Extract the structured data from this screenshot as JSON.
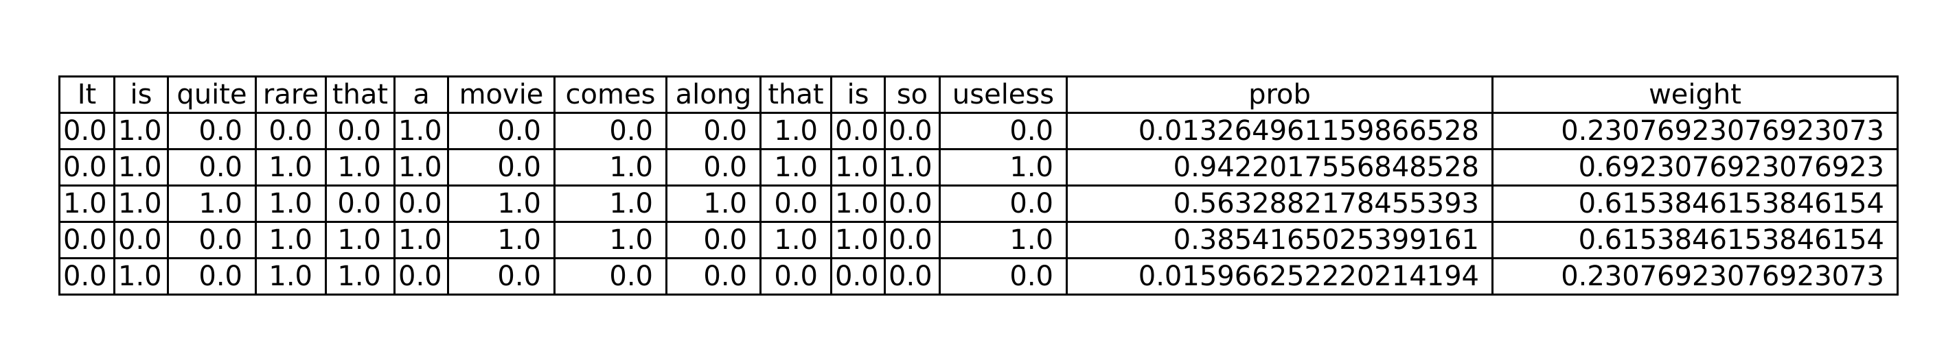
{
  "chart_data": {
    "type": "table",
    "columns": [
      "It",
      "is",
      "quite",
      "rare",
      "that",
      "a",
      "movie",
      "comes",
      "along",
      "that",
      "is",
      "so",
      "useless",
      "prob",
      "weight"
    ],
    "rows": [
      [
        "0.0",
        "1.0",
        "0.0",
        "0.0",
        "0.0",
        "1.0",
        "0.0",
        "0.0",
        "0.0",
        "1.0",
        "0.0",
        "0.0",
        "0.0",
        "0.013264961159866528",
        "0.23076923076923073"
      ],
      [
        "0.0",
        "1.0",
        "0.0",
        "1.0",
        "1.0",
        "1.0",
        "0.0",
        "1.0",
        "0.0",
        "1.0",
        "1.0",
        "1.0",
        "1.0",
        "0.9422017556848528",
        "0.6923076923076923"
      ],
      [
        "1.0",
        "1.0",
        "1.0",
        "1.0",
        "0.0",
        "0.0",
        "1.0",
        "1.0",
        "1.0",
        "0.0",
        "1.0",
        "0.0",
        "0.0",
        "0.5632882178455393",
        "0.6153846153846154"
      ],
      [
        "0.0",
        "0.0",
        "0.0",
        "1.0",
        "1.0",
        "1.0",
        "1.0",
        "1.0",
        "0.0",
        "1.0",
        "1.0",
        "0.0",
        "1.0",
        "0.3854165025399161",
        "0.6153846153846154"
      ],
      [
        "0.0",
        "1.0",
        "0.0",
        "1.0",
        "1.0",
        "0.0",
        "0.0",
        "0.0",
        "0.0",
        "0.0",
        "0.0",
        "0.0",
        "0.0",
        "0.015966252220214194",
        "0.23076923076923073"
      ]
    ]
  }
}
